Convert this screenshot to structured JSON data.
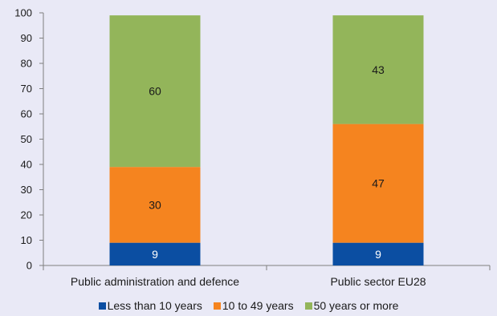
{
  "chart_data": {
    "type": "bar",
    "stacked": true,
    "title": "",
    "xlabel": "",
    "ylabel": "",
    "ylim": [
      0,
      100
    ],
    "yticks": [
      0,
      10,
      20,
      30,
      40,
      50,
      60,
      70,
      80,
      90,
      100
    ],
    "categories": [
      "Public administration and defence",
      "Public sector EU28"
    ],
    "series": [
      {
        "name": "Less than 10 years",
        "color": "#0b4ea2",
        "label_color": "#ffffff",
        "values": [
          9,
          9
        ]
      },
      {
        "name": "10 to 49 years",
        "color": "#f5841f",
        "label_color": "#1a1a1a",
        "values": [
          30,
          47
        ]
      },
      {
        "name": "50 years or more",
        "color": "#93b55a",
        "label_color": "#1a1a1a",
        "values": [
          60,
          43
        ]
      }
    ],
    "legend_position": "bottom",
    "grid": false
  }
}
